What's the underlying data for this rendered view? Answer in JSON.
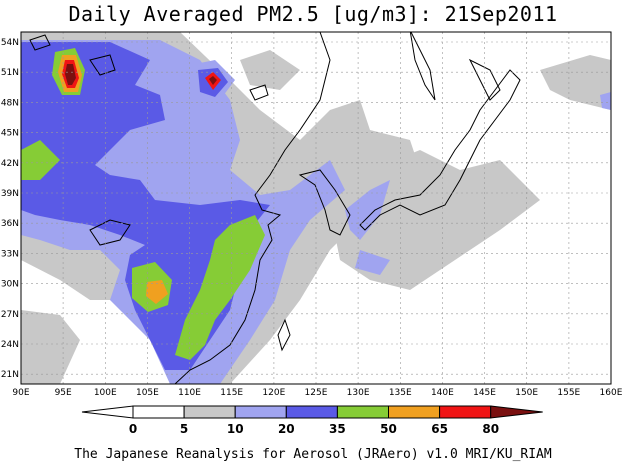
{
  "title": "Daily Averaged PM2.5 [ug/m3]: 21Sep2011",
  "credit": "The Japanese Reanalysis for Aerosol (JRAero) v1.0 MRI/KU_RIAM",
  "map": {
    "lon_range": [
      90,
      160
    ],
    "lat_range": [
      20,
      55
    ],
    "lon_ticks": [
      "90E",
      "95E",
      "100E",
      "105E",
      "110E",
      "115E",
      "120E",
      "125E",
      "130E",
      "135E",
      "140E",
      "145E",
      "150E",
      "155E",
      "160E"
    ],
    "lat_ticks": [
      "54N",
      "51N",
      "48N",
      "45N",
      "42N",
      "39N",
      "36N",
      "33N",
      "30N",
      "27N",
      "24N",
      "21N"
    ],
    "gridlines": "dashed",
    "colors": {
      "0-5": "#ffffff",
      "5-10": "#c8c8c8",
      "10-20": "#a0a4f0",
      "20-35": "#5a5ae6",
      "35-50": "#86cc36",
      "50-65": "#f0a020",
      "65-80": "#f01414",
      "80+": "#7a1010"
    }
  },
  "colorbar": {
    "labels": [
      "0",
      "5",
      "10",
      "20",
      "35",
      "50",
      "65",
      "80"
    ],
    "colors": [
      "#ffffff",
      "#c8c8c8",
      "#a0a4f0",
      "#5a5ae6",
      "#86cc36",
      "#f0a020",
      "#f01414",
      "#7a1010"
    ]
  }
}
